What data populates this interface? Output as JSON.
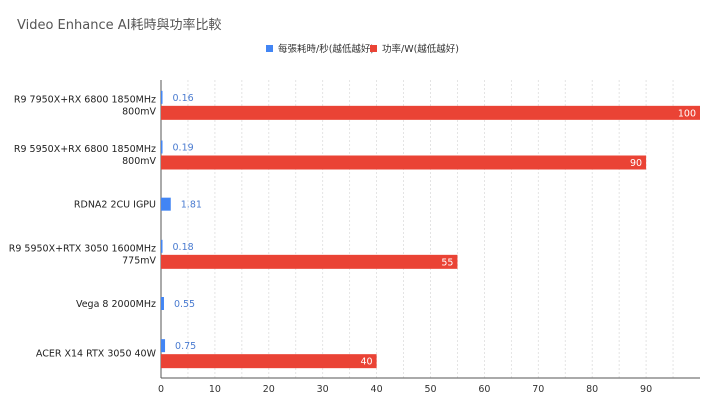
{
  "chart_data": {
    "type": "bar",
    "orientation": "horizontal",
    "title": "Video Enhance AI耗時與功率比較",
    "categories": [
      [
        "R9 7950X+RX 6800 1850MHz",
        "800mV"
      ],
      [
        "R9 5950X+RX 6800 1850MHz",
        "800mV"
      ],
      [
        "RDNA2 2CU IGPU"
      ],
      [
        "R9 5950X+RTX 3050 1600MHz",
        "775mV"
      ],
      [
        "Vega 8 2000MHz"
      ],
      [
        "ACER X14 RTX 3050 40W"
      ]
    ],
    "series": [
      {
        "name": "每張耗時/秒(越低越好)",
        "color": "#4285f4",
        "values": [
          0.16,
          0.19,
          1.81,
          0.18,
          0.55,
          0.75
        ]
      },
      {
        "name": "功率/W(越低越好)",
        "color": "#ea4335",
        "values": [
          100,
          90,
          null,
          55,
          null,
          40
        ]
      }
    ],
    "xlim": [
      0,
      100
    ],
    "xticks": [
      0,
      10,
      20,
      30,
      40,
      50,
      60,
      70,
      80,
      90
    ],
    "grid": true,
    "legend_position": "top"
  }
}
